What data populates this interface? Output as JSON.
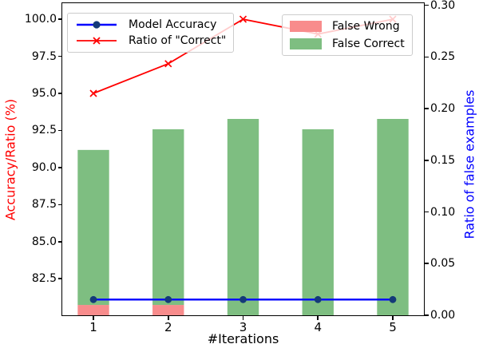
{
  "chart_data": {
    "type": "combo-bar-line-dual-axis",
    "title": "",
    "xlabel": "#Iterations",
    "x": [
      1,
      2,
      3,
      4,
      5
    ],
    "x_tick_labels": [
      "1",
      "2",
      "3",
      "4",
      "5"
    ],
    "xlim": [
      0.584,
      5.416
    ],
    "bar_width": 0.42,
    "grid": false,
    "left_axis": {
      "label": "Accuracy/Ratio (%)",
      "color": "#ff0000",
      "ylim": [
        80.04,
        101.08
      ],
      "ticks": [
        {
          "v": 100.0,
          "label": "100.0"
        },
        {
          "v": 97.5,
          "label": "97.5"
        },
        {
          "v": 95.0,
          "label": "95.0"
        },
        {
          "v": 92.5,
          "label": "92.5"
        },
        {
          "v": 90.0,
          "label": "90.0"
        },
        {
          "v": 87.5,
          "label": "87.5"
        },
        {
          "v": 85.0,
          "label": "85.0"
        },
        {
          "v": 82.5,
          "label": "82.5"
        }
      ]
    },
    "right_axis": {
      "label": "Ratio of false examples",
      "color": "#0000ff",
      "ylim": [
        0,
        0.302
      ],
      "ticks": [
        {
          "v": 0.3,
          "label": "0.30"
        },
        {
          "v": 0.25,
          "label": "0.25"
        },
        {
          "v": 0.2,
          "label": "0.20"
        },
        {
          "v": 0.15,
          "label": "0.15"
        },
        {
          "v": 0.1,
          "label": "0.10"
        },
        {
          "v": 0.05,
          "label": "0.05"
        },
        {
          "v": 0.0,
          "label": "0.00"
        }
      ]
    },
    "series": [
      {
        "name": "Model Accuracy",
        "type": "line",
        "axis": "left",
        "color": "#0000ff",
        "marker": "circle",
        "marker_color": "#143a78",
        "values": [
          81.1,
          81.1,
          81.1,
          81.1,
          81.1
        ]
      },
      {
        "name": "Ratio of \"Correct\"",
        "type": "line",
        "axis": "left",
        "color": "#ff0000",
        "marker": "x",
        "marker_color": "#ff0000",
        "values": [
          95.0,
          97.0,
          100.0,
          99.0,
          100.0
        ]
      },
      {
        "name": "False Wrong",
        "type": "bar",
        "axis": "right",
        "color": "#f88c8c",
        "values": [
          0.01,
          0.01,
          0.0,
          0.0,
          0.0
        ]
      },
      {
        "name": "False Correct",
        "type": "bar",
        "axis": "right",
        "color": "#7ebe81",
        "stacked_on": "False Wrong",
        "values": [
          0.15,
          0.17,
          0.19,
          0.18,
          0.19
        ]
      }
    ],
    "legends": [
      {
        "position": "upper-left",
        "items": [
          "Model Accuracy",
          "Ratio of \"Correct\""
        ]
      },
      {
        "position": "upper-right",
        "items": [
          "False Wrong",
          "False Correct"
        ]
      }
    ]
  }
}
